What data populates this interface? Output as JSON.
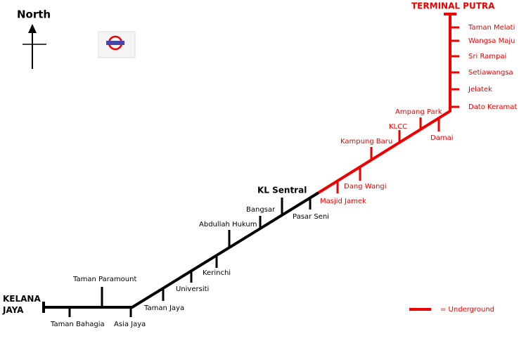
{
  "north_label": "North",
  "legend": {
    "label": "= Underground"
  },
  "stations": [
    {
      "label": "KELANA JAYA"
    },
    {
      "label": "Taman Bahagia"
    },
    {
      "label": "Taman Paramount"
    },
    {
      "label": "Asia Jaya"
    },
    {
      "label": "Taman Jaya"
    },
    {
      "label": "Universiti"
    },
    {
      "label": "Kerinchi"
    },
    {
      "label": "Abdullah Hukum"
    },
    {
      "label": "Bangsar"
    },
    {
      "label": "KL Sentral"
    },
    {
      "label": "Pasar Seni"
    },
    {
      "label": "Masjid Jamek"
    },
    {
      "label": "Dang Wangi"
    },
    {
      "label": "Kampung Baru"
    },
    {
      "label": "KLCC"
    },
    {
      "label": "Ampang Park"
    },
    {
      "label": "Damai"
    },
    {
      "label": "Dato Keramat"
    },
    {
      "label": "Jelatek"
    },
    {
      "label": "Setiawangsa"
    },
    {
      "label": "Sri Rampai"
    },
    {
      "label": "Wangsa Maju"
    },
    {
      "label": "Taman Melati"
    },
    {
      "label": "TERMINAL PUTRA"
    }
  ]
}
